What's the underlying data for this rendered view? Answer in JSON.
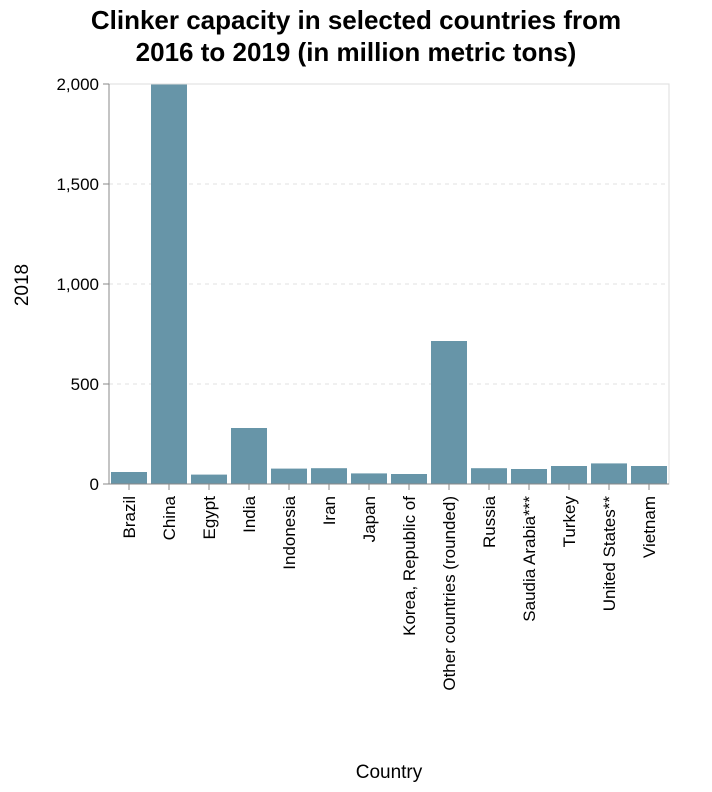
{
  "chart_data": {
    "type": "bar",
    "title_lines": [
      "Clinker capacity in selected countries from",
      "2016 to 2019 (in million metric tons)"
    ],
    "xlabel": "Country",
    "ylabel": "2018",
    "ylim": [
      0,
      2000
    ],
    "yticks": [
      0,
      500,
      1000,
      1500,
      2000
    ],
    "ytick_labels": [
      "0",
      "500",
      "1,000",
      "1,500",
      "2,000"
    ],
    "grid": "horizontal dashed",
    "bar_color": "#6795a8",
    "categories": [
      "Brazil",
      "China",
      "Egypt",
      "India",
      "Indonesia",
      "Iran",
      "Japan",
      "Korea, Republic of",
      "Other countries (rounded)",
      "Russia",
      "Saudia Arabia***",
      "Turkey",
      "United States**",
      "Vietnam"
    ],
    "values": [
      60,
      2000,
      47,
      280,
      77,
      79,
      53,
      50,
      715,
      79,
      75,
      90,
      103,
      90
    ]
  }
}
